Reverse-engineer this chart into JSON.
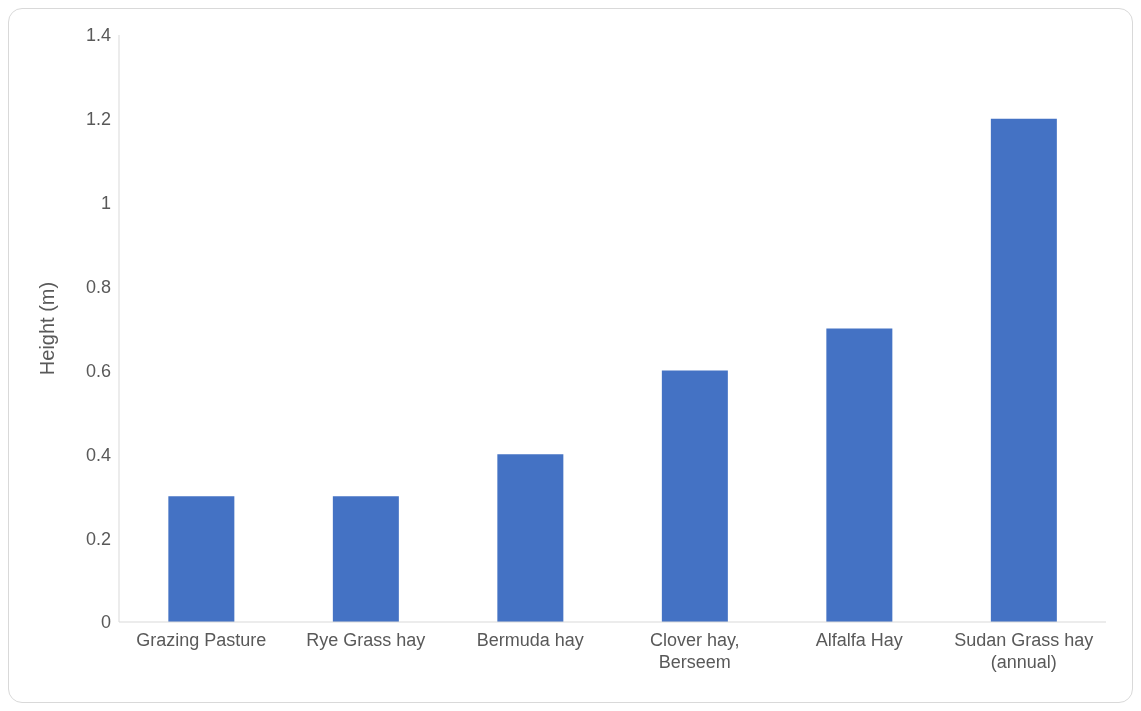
{
  "chart_data": {
    "type": "bar",
    "ylabel": "Height (m)",
    "categories": [
      "Grazing Pasture",
      "Rye Grass hay",
      "Bermuda hay",
      "Clover hay, Berseem",
      "Alfalfa Hay",
      "Sudan Grass hay (annual)"
    ],
    "values": [
      0.3,
      0.3,
      0.4,
      0.6,
      0.7,
      1.2
    ],
    "color": "#4472c4",
    "ylim": [
      0,
      1.4
    ],
    "yticks": [
      0,
      0.2,
      0.4,
      0.6,
      0.8,
      1,
      1.2,
      1.4
    ],
    "grid": false,
    "legend": false
  }
}
